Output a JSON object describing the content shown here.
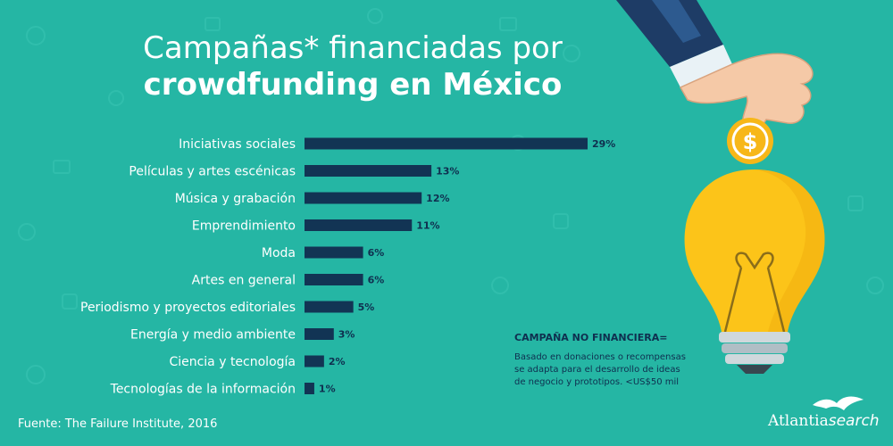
{
  "title": {
    "line1": "Campañas* financiadas por",
    "line2": "crowdfunding en México"
  },
  "chart_data": {
    "type": "bar",
    "orientation": "horizontal",
    "categories": [
      "Iniciativas sociales",
      "Películas y artes escénicas",
      "Música y grabación",
      "Emprendimiento",
      "Moda",
      "Artes en general",
      "Periodismo y proyectos editoriales",
      "Energía y medio ambiente",
      "Ciencia y tecnología",
      "Tecnologías de la información"
    ],
    "values": [
      29,
      13,
      12,
      11,
      6,
      6,
      5,
      3,
      2,
      1
    ],
    "value_labels": [
      "29%",
      "13%",
      "12%",
      "11%",
      "6%",
      "6%",
      "5%",
      "3%",
      "2%",
      "1%"
    ],
    "xlim": [
      0,
      29
    ],
    "grid": false,
    "legend": "none"
  },
  "note": {
    "title": "CAMPAÑA NO FINANCIERA=",
    "line1": "Basado en donaciones o recompensas",
    "line2": "se adapta para el desarrollo de ideas",
    "line3": "de negocio y prototipos. <US$50 mil"
  },
  "source": "Fuente: The Failure Institute, 2016",
  "logo": {
    "part1": "Atlantia",
    "part2": "search"
  },
  "colors": {
    "background": "#25b6a4",
    "bar": "#123454",
    "text_dark": "#0f2f4f",
    "bulb": "#fcc419",
    "coin": "#f7b718"
  }
}
